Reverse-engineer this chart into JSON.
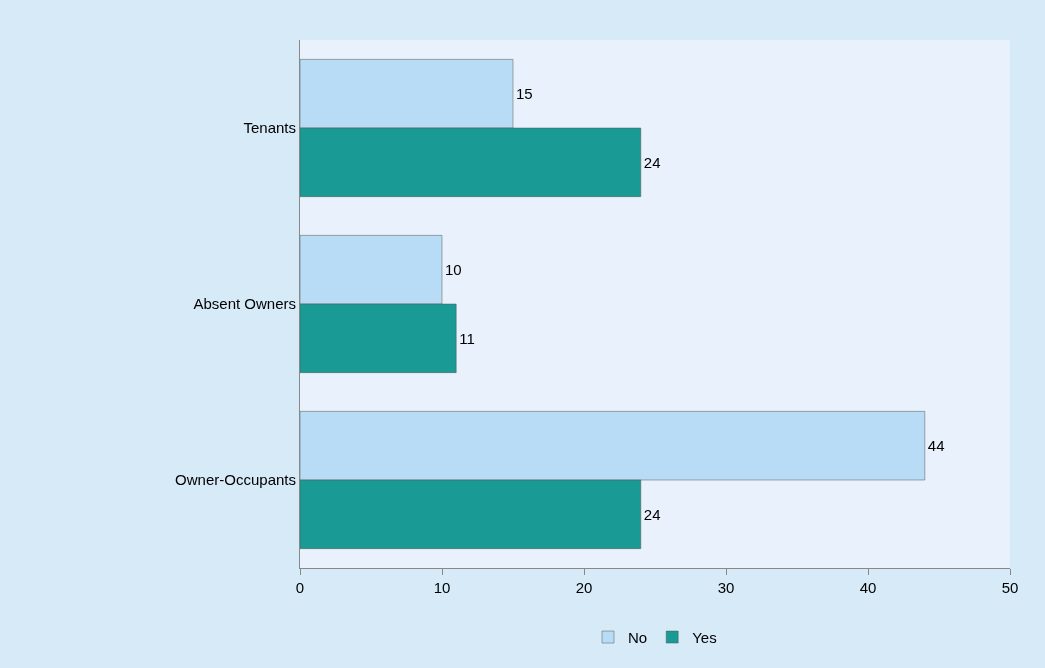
{
  "chart_data": {
    "type": "bar",
    "orientation": "horizontal",
    "categories": [
      "Tenants",
      "Absent Owners",
      "Owner-Occupants"
    ],
    "series": [
      {
        "name": "No",
        "color": "#b9dcf6",
        "values": [
          15,
          10,
          44
        ]
      },
      {
        "name": "Yes",
        "color": "#1a9a94",
        "values": [
          24,
          11,
          24
        ]
      }
    ],
    "xlim": [
      0,
      50
    ],
    "xticks": [
      0,
      10,
      20,
      30,
      40,
      50
    ],
    "data_labels": true,
    "grid": false,
    "legend": "bottom"
  }
}
